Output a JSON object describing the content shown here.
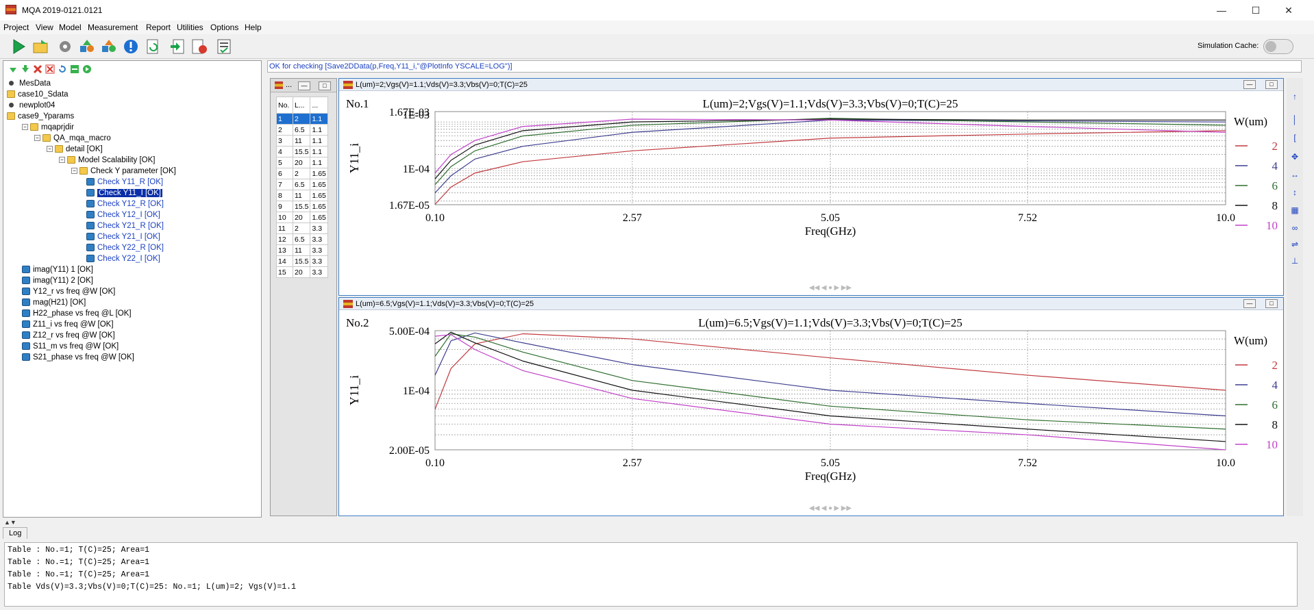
{
  "window": {
    "title": "MQA 2019-0121.0121"
  },
  "menu": [
    "Project",
    "View",
    "Model",
    "Measurement",
    "Report",
    "Utilities",
    "Options",
    "Help"
  ],
  "toolbar": {
    "simulation_cache_label": "Simulation Cache:",
    "simulation_cache_on": false
  },
  "tree": {
    "items": [
      {
        "label": "MesData",
        "icon": "bullet-icon",
        "indent": 0
      },
      {
        "label": "case10_Sdata",
        "icon": "folder-icon",
        "indent": 0
      },
      {
        "label": "newplot04",
        "icon": "bullet-icon",
        "indent": 0
      },
      {
        "label": "case9_Yparams",
        "icon": "folder-icon",
        "indent": 0
      },
      {
        "label": "mqaprjdir",
        "icon": "folder-icon",
        "indent": 1
      },
      {
        "label": "QA_mqa_macro",
        "icon": "folder-icon",
        "indent": 2
      },
      {
        "label": "detail [OK]",
        "icon": "folder-icon",
        "indent": 3
      },
      {
        "label": "Model Scalability [OK]",
        "icon": "folder-icon",
        "indent": 4
      },
      {
        "label": "Check Y parameter [OK]",
        "icon": "folder-icon",
        "indent": 5
      },
      {
        "label": "Check Y11_R [OK]",
        "icon": "check-icon",
        "indent": 6
      },
      {
        "label": "Check Y11_I [OK]",
        "icon": "check-icon",
        "indent": 6,
        "selected": true
      },
      {
        "label": "Check Y12_R [OK]",
        "icon": "check-icon",
        "indent": 6
      },
      {
        "label": "Check Y12_I [OK]",
        "icon": "check-icon",
        "indent": 6
      },
      {
        "label": "Check Y21_R [OK]",
        "icon": "check-icon",
        "indent": 6
      },
      {
        "label": "Check Y21_I [OK]",
        "icon": "check-icon",
        "indent": 6
      },
      {
        "label": "Check Y22_R [OK]",
        "icon": "check-icon",
        "indent": 6
      },
      {
        "label": "Check Y22_I [OK]",
        "icon": "check-icon",
        "indent": 6
      },
      {
        "label": "imag(Y11) 1 [OK]",
        "icon": "check-icon",
        "indent": 1
      },
      {
        "label": "imag(Y11) 2 [OK]",
        "icon": "check-icon",
        "indent": 1
      },
      {
        "label": "Y12_r vs freq @W [OK]",
        "icon": "check-icon",
        "indent": 1
      },
      {
        "label": "mag(H21) [OK]",
        "icon": "check-icon",
        "indent": 1
      },
      {
        "label": "H22_phase vs freq @L [OK]",
        "icon": "check-icon",
        "indent": 1
      },
      {
        "label": "Z11_i vs freq @W [OK]",
        "icon": "check-icon",
        "indent": 1
      },
      {
        "label": "Z12_r vs freq @W [OK]",
        "icon": "check-icon",
        "indent": 1
      },
      {
        "label": "S11_m vs freq @W [OK]",
        "icon": "check-icon",
        "indent": 1
      },
      {
        "label": "S21_phase vs freq @W [OK]",
        "icon": "check-icon",
        "indent": 1
      }
    ]
  },
  "command_line": "OK for checking [Save2DData(p,Freq,Y11_i,\"@PlotInfo YSCALE=LOG\")]",
  "table": {
    "window_title": "...",
    "headers": [
      "No.",
      "L...",
      "..."
    ],
    "rows": [
      [
        "1",
        "2",
        "1.1"
      ],
      [
        "2",
        "6.5",
        "1.1"
      ],
      [
        "3",
        "11",
        "1.1"
      ],
      [
        "4",
        "15.5",
        "1.1"
      ],
      [
        "5",
        "20",
        "1.1"
      ],
      [
        "6",
        "2",
        "1.65"
      ],
      [
        "7",
        "6.5",
        "1.65"
      ],
      [
        "8",
        "11",
        "1.65"
      ],
      [
        "9",
        "15.5",
        "1.65"
      ],
      [
        "10",
        "20",
        "1.65"
      ],
      [
        "11",
        "2",
        "3.3"
      ],
      [
        "12",
        "6.5",
        "3.3"
      ],
      [
        "13",
        "11",
        "3.3"
      ],
      [
        "14",
        "15.5",
        "3.3"
      ],
      [
        "15",
        "20",
        "3.3"
      ]
    ],
    "selected_row": 0
  },
  "plots": [
    {
      "window_title": "L(um)=2;Vgs(V)=1.1;Vds(V)=3.3;Vbs(V)=0;T(C)=25",
      "number": "No.1",
      "title": "L(um)=2;Vgs(V)=1.1;Vds(V)=3.3;Vbs(V)=0;T(C)=25",
      "ylabel": "Y11_i",
      "xlabel": "Freq(GHz)",
      "yticks": [
        "1.67E-03",
        "1E-03",
        "1E-04",
        "1.67E-05"
      ],
      "xticks": [
        "0.10",
        "2.57",
        "5.05",
        "7.52",
        "10.0"
      ],
      "legend_title": "W(um)",
      "legend": [
        "2",
        "4",
        "6",
        "8",
        "10"
      ]
    },
    {
      "window_title": "L(um)=6.5;Vgs(V)=1.1;Vds(V)=3.3;Vbs(V)=0;T(C)=25",
      "number": "No.2",
      "title": "L(um)=6.5;Vgs(V)=1.1;Vds(V)=3.3;Vbs(V)=0;T(C)=25",
      "ylabel": "Y11_i",
      "xlabel": "Freq(GHz)",
      "yticks": [
        "5.00E-04",
        "1E-04",
        "2.00E-05"
      ],
      "xticks": [
        "0.10",
        "2.57",
        "5.05",
        "7.52",
        "10.0"
      ],
      "legend_title": "W(um)",
      "legend": [
        "2",
        "4",
        "6",
        "8",
        "10"
      ]
    }
  ],
  "series_colors": [
    "#c0393e",
    "#3d3d8f",
    "#2f6e2f",
    "#111111",
    "#c040c8"
  ],
  "chart_data": [
    {
      "type": "line",
      "title": "L(um)=2;Vgs(V)=1.1;Vds(V)=3.3;Vbs(V)=0;T(C)=25",
      "xlabel": "Freq(GHz)",
      "ylabel": "Y11_i",
      "xlim": [
        0.1,
        10.0
      ],
      "ylim": [
        1.67e-05,
        0.00167
      ],
      "yscale": "log",
      "x": [
        0.1,
        0.3,
        0.6,
        1.2,
        2.57,
        5.05,
        7.52,
        10.0
      ],
      "series": [
        {
          "name": "2",
          "values": [
            1.7e-05,
            4e-05,
            8e-05,
            0.00014,
            0.00024,
            0.00045,
            0.00055,
            0.00065
          ]
        },
        {
          "name": "4",
          "values": [
            3e-05,
            7e-05,
            0.00016,
            0.0003,
            0.0006,
            0.0011,
            0.00105,
            0.001
          ]
        },
        {
          "name": "6",
          "values": [
            4.5e-05,
            0.00011,
            0.00024,
            0.0005,
            0.00085,
            0.0012,
            0.001,
            0.00085
          ]
        },
        {
          "name": "8",
          "values": [
            6e-05,
            0.00015,
            0.00032,
            0.00065,
            0.001,
            0.00115,
            0.0011,
            0.0011
          ]
        },
        {
          "name": "10",
          "values": [
            8e-05,
            0.0002,
            0.0004,
            0.0008,
            0.00115,
            0.0011,
            0.0008,
            0.0006
          ]
        }
      ]
    },
    {
      "type": "line",
      "title": "L(um)=6.5;Vgs(V)=1.1;Vds(V)=3.3;Vbs(V)=0;T(C)=25",
      "xlabel": "Freq(GHz)",
      "ylabel": "Y11_i",
      "xlim": [
        0.1,
        10.0
      ],
      "ylim": [
        2e-05,
        0.0005
      ],
      "yscale": "log",
      "x": [
        0.1,
        0.3,
        0.6,
        1.2,
        2.57,
        5.05,
        7.52,
        10.0
      ],
      "series": [
        {
          "name": "2",
          "values": [
            6e-05,
            0.00018,
            0.00035,
            0.00046,
            0.0004,
            0.00024,
            0.00015,
            0.0001
          ]
        },
        {
          "name": "4",
          "values": [
            0.00015,
            0.00038,
            0.00047,
            0.00036,
            0.0002,
            0.0001,
            7e-05,
            5e-05
          ]
        },
        {
          "name": "6",
          "values": [
            0.00025,
            0.00046,
            0.00042,
            0.00028,
            0.00013,
            6.5e-05,
            4.5e-05,
            3.5e-05
          ]
        },
        {
          "name": "8",
          "values": [
            0.00035,
            0.00048,
            0.00036,
            0.00022,
            0.0001,
            5e-05,
            3.5e-05,
            2.5e-05
          ]
        },
        {
          "name": "10",
          "values": [
            0.00043,
            0.00045,
            0.0003,
            0.00017,
            8e-05,
            4e-05,
            3e-05,
            2e-05
          ]
        }
      ]
    }
  ],
  "log": {
    "tab_label": "Log",
    "lines": [
      "Table : No.=1; T(C)=25; Area=1",
      "Table : No.=1; T(C)=25; Area=1",
      "Table : No.=1; T(C)=25; Area=1",
      "Table Vds(V)=3.3;Vbs(V)=0;T(C)=25: No.=1; L(um)=2; Vgs(V)=1.1"
    ]
  }
}
